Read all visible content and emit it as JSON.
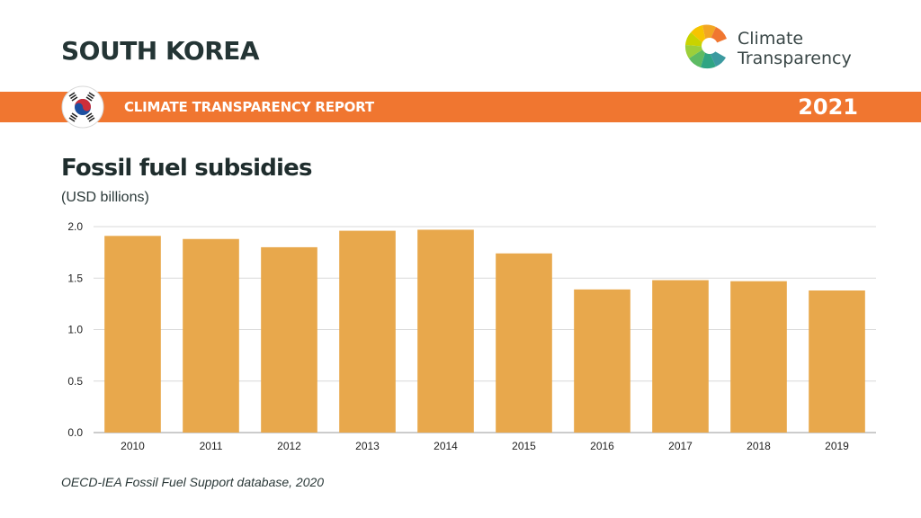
{
  "header": {
    "country": "SOUTH KOREA",
    "report_label": "CLIMATE TRANSPARENCY REPORT",
    "year": "2021",
    "band_color": "#f07630"
  },
  "logo": {
    "line1": "Climate",
    "line2": "Transparency"
  },
  "flag": {
    "icon": "south-korea-flag-icon"
  },
  "chart_data": {
    "type": "bar",
    "title": "Fossil fuel subsidies",
    "subtitle": "(USD billions)",
    "categories": [
      "2010",
      "2011",
      "2012",
      "2013",
      "2014",
      "2015",
      "2016",
      "2017",
      "2018",
      "2019"
    ],
    "values": [
      1.91,
      1.88,
      1.8,
      1.96,
      1.97,
      1.74,
      1.39,
      1.48,
      1.47,
      1.38
    ],
    "ylim": [
      0,
      2.0
    ],
    "yticks": [
      "0.0",
      "0.5",
      "1.0",
      "1.5",
      "2.0"
    ],
    "grid": true,
    "bar_color": "#e8a84c"
  },
  "source": "OECD-IEA Fossil Fuel Support database, 2020"
}
